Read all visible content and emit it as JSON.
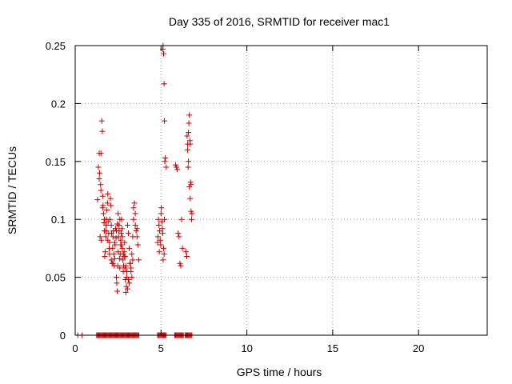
{
  "chart_data": {
    "type": "scatter",
    "title": "Day 335 of 2016, SRMTID for receiver mac1",
    "xlabel": "GPS time / hours",
    "ylabel": "SRMTID / TECUs",
    "xlim": [
      0,
      24
    ],
    "ylim": [
      0,
      0.25
    ],
    "xticks": [
      0,
      5,
      10,
      15,
      20
    ],
    "xtick_labels": [
      "0",
      "5",
      "10",
      "15",
      "20"
    ],
    "yticks": [
      0,
      0.05,
      0.1,
      0.15,
      0.2,
      0.25
    ],
    "ytick_labels": [
      "0",
      "0.05",
      "0.1",
      "0.15",
      "0.2",
      "0.25"
    ],
    "grid": true,
    "legend": "none",
    "marker": "plus",
    "color": "#cc0000",
    "series": [
      {
        "x": [
          0.15,
          0.4,
          1.25,
          1.3,
          1.35,
          1.4,
          1.45,
          1.5,
          1.55,
          1.6,
          1.65,
          1.7,
          1.75,
          1.8,
          1.85,
          1.9,
          1.95,
          2.0,
          2.05,
          2.1,
          2.15,
          2.2,
          2.25,
          2.3,
          2.35,
          2.4,
          2.45,
          2.5,
          2.55,
          2.6,
          2.65,
          2.7,
          2.75,
          2.8,
          2.85,
          2.9,
          2.95,
          3.0,
          3.05,
          3.1,
          3.15,
          3.2,
          3.25,
          3.3,
          3.35,
          3.4,
          3.45,
          3.5,
          3.55,
          3.6,
          3.65,
          3.7,
          4.8,
          4.85,
          4.9,
          4.95,
          5.0,
          5.05,
          5.1,
          5.15,
          5.2,
          5.25,
          5.3,
          5.8,
          5.85,
          5.9,
          5.95,
          6.0,
          6.05,
          6.1,
          6.15,
          6.2,
          6.25,
          6.3,
          6.4,
          6.45,
          6.5,
          6.55,
          6.6,
          6.65,
          6.7,
          6.75,
          6.8
        ],
        "y": [
          0,
          0,
          0,
          0,
          0,
          0,
          0,
          0,
          0,
          0,
          0,
          0,
          0,
          0,
          0,
          0,
          0,
          0,
          0,
          0,
          0,
          0,
          0,
          0,
          0,
          0,
          0,
          0,
          0,
          0,
          0,
          0,
          0,
          0,
          0,
          0,
          0,
          0,
          0,
          0,
          0,
          0,
          0,
          0,
          0,
          0,
          0,
          0,
          0,
          0,
          0,
          0,
          0,
          0,
          0,
          0,
          0,
          0,
          0,
          0,
          0,
          0,
          0,
          0,
          0,
          0,
          0,
          0,
          0,
          0,
          0,
          0,
          0,
          0,
          0,
          0,
          0,
          0,
          0,
          0,
          0,
          0,
          0
        ]
      },
      {
        "x": [
          1.3,
          1.35,
          1.4,
          1.42,
          1.45,
          1.48,
          1.5,
          1.52,
          1.55,
          1.58,
          1.6,
          1.62,
          1.65,
          1.68,
          1.7,
          1.72,
          1.75,
          1.78,
          1.8,
          1.82,
          1.85,
          1.88,
          1.9,
          1.92,
          1.95,
          1.98,
          2.0,
          2.02,
          2.05,
          2.08,
          2.1,
          2.12,
          2.15,
          2.18,
          2.2,
          2.22,
          2.25,
          2.28,
          2.3,
          2.32,
          2.35,
          2.38,
          2.4,
          2.42,
          2.45,
          2.48,
          2.5,
          2.52,
          2.55,
          2.58,
          2.6,
          2.62,
          2.65,
          2.68,
          2.7,
          2.72,
          2.75,
          2.78,
          2.8,
          2.82,
          2.85,
          2.88,
          2.9,
          2.92,
          2.95,
          2.98,
          3.0,
          3.05,
          3.1,
          3.15,
          3.2,
          3.25,
          3.3,
          3.35,
          3.4,
          3.45,
          3.5,
          3.55,
          3.6,
          3.65,
          3.7,
          1.4,
          1.5,
          1.6,
          1.7,
          1.8,
          1.9,
          2.0,
          2.1,
          2.2,
          2.3,
          2.4,
          2.5,
          2.6,
          2.7,
          2.8,
          2.9,
          3.0,
          3.1,
          3.2,
          3.3,
          3.4,
          3.5,
          3.6,
          2.45,
          2.55,
          2.65,
          2.75,
          2.85,
          2.95,
          3.05,
          3.15,
          3.25,
          3.35
        ],
        "y": [
          0.117,
          0.145,
          0.157,
          0.14,
          0.085,
          0.13,
          0.157,
          0.082,
          0.185,
          0.176,
          0.12,
          0.112,
          0.105,
          0.097,
          0.09,
          0.068,
          0.072,
          0.085,
          0.095,
          0.1,
          0.108,
          0.114,
          0.122,
          0.098,
          0.088,
          0.075,
          0.08,
          0.1,
          0.118,
          0.112,
          0.095,
          0.088,
          0.062,
          0.075,
          0.085,
          0.09,
          0.07,
          0.06,
          0.066,
          0.078,
          0.092,
          0.084,
          0.05,
          0.045,
          0.038,
          0.06,
          0.072,
          0.085,
          0.095,
          0.066,
          0.058,
          0.07,
          0.078,
          0.088,
          0.1,
          0.092,
          0.085,
          0.065,
          0.055,
          0.06,
          0.072,
          0.08,
          0.058,
          0.048,
          0.037,
          0.042,
          0.05,
          0.095,
          0.088,
          0.075,
          0.062,
          0.055,
          0.05,
          0.085,
          0.11,
          0.114,
          0.095,
          0.09,
          0.085,
          0.078,
          0.065,
          0.135,
          0.125,
          0.11,
          0.1,
          0.09,
          0.082,
          0.07,
          0.065,
          0.062,
          0.08,
          0.09,
          0.105,
          0.1,
          0.078,
          0.07,
          0.068,
          0.055,
          0.048,
          0.062,
          0.07,
          0.1,
          0.105,
          0.092,
          0.096,
          0.09,
          0.082,
          0.075,
          0.068,
          0.06,
          0.04,
          0.045,
          0.058,
          0.065
        ]
      },
      {
        "x": [
          4.8,
          4.82,
          4.85,
          4.88,
          4.9,
          4.92,
          4.95,
          4.98,
          5.0,
          5.02,
          5.05,
          5.08,
          5.1,
          5.12,
          5.15,
          5.18,
          5.2,
          5.22,
          5.25,
          5.3,
          5.1,
          5.15,
          5.2,
          5.12,
          5.18
        ],
        "y": [
          0.08,
          0.085,
          0.1,
          0.095,
          0.072,
          0.09,
          0.082,
          0.078,
          0.105,
          0.11,
          0.098,
          0.092,
          0.247,
          0.25,
          0.243,
          0.217,
          0.185,
          0.15,
          0.153,
          0.145,
          0.088,
          0.075,
          0.1,
          0.065,
          0.07
        ]
      },
      {
        "x": [
          5.85,
          5.9,
          5.95,
          6.0,
          6.05,
          6.1,
          6.15,
          6.2,
          6.25,
          6.45,
          6.5,
          6.52,
          6.55,
          6.58,
          6.6,
          6.62,
          6.65,
          6.68,
          6.7,
          6.72,
          6.75,
          6.78,
          6.8,
          6.55,
          6.6,
          6.65,
          6.7,
          6.75
        ],
        "y": [
          0.147,
          0.145,
          0.143,
          0.088,
          0.085,
          0.062,
          0.06,
          0.1,
          0.075,
          0.072,
          0.068,
          0.172,
          0.16,
          0.145,
          0.175,
          0.183,
          0.19,
          0.168,
          0.165,
          0.132,
          0.13,
          0.1,
          0.105,
          0.165,
          0.15,
          0.128,
          0.118,
          0.107
        ]
      }
    ]
  }
}
